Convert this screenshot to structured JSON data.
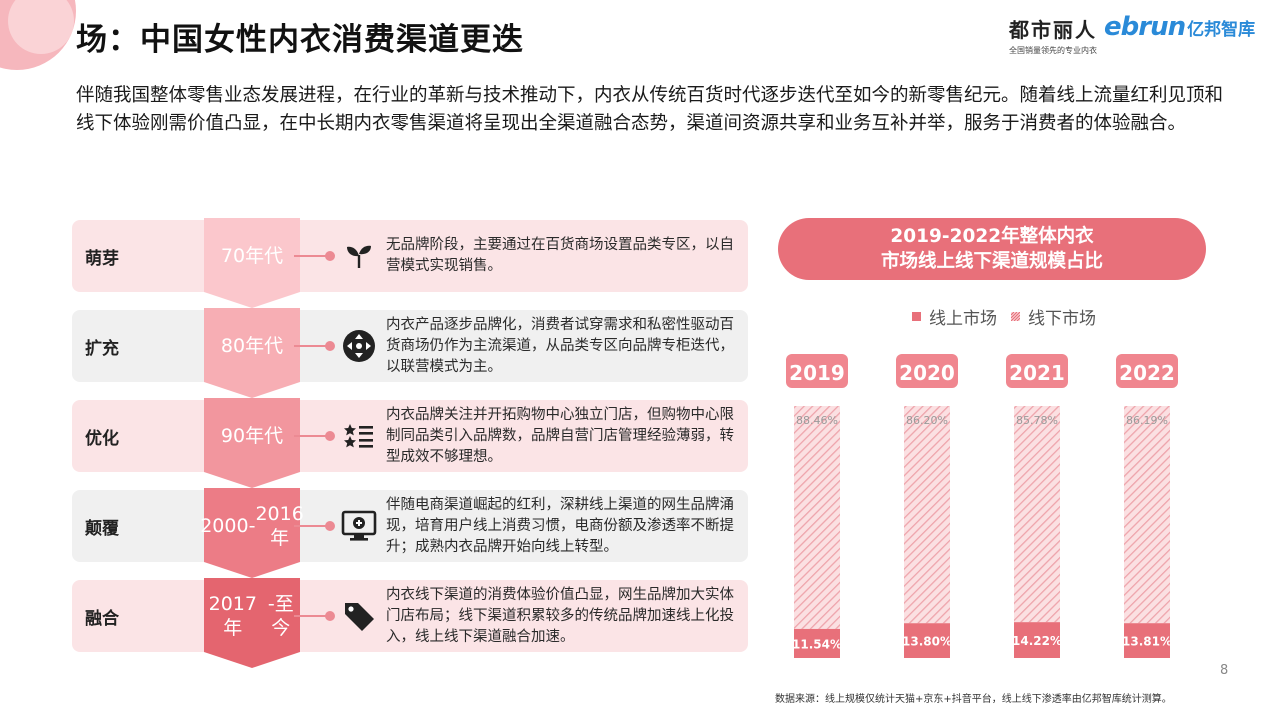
{
  "header": {
    "title": "场：中国女性内衣消费渠道更迭",
    "brand_a_name": "都市丽人",
    "brand_a_slogan": "全国销量领先的专业内衣",
    "brand_b_logo": "ebrun",
    "brand_b_name": "亿邦智库"
  },
  "intro": "伴随我国整体零售业态发展进程，在行业的革新与技术推动下，内衣从传统百货时代逐步迭代至如今的新零售纪元。随着线上流量红利见顶和线下体验刚需价值凸显，在中长期内衣零售渠道将呈现出全渠道融合态势，渠道间资源共享和业务互补并举，服务于消费者的体验融合。",
  "timeline": [
    {
      "stage": "萌芽",
      "era": "70年代",
      "icon": "sprout-icon",
      "desc": "无品牌阶段，主要通过在百货商场设置品类专区，以自营模式实现销售。"
    },
    {
      "stage": "扩充",
      "era": "80年代",
      "icon": "expand-icon",
      "desc": "内衣产品逐步品牌化，消费者试穿需求和私密性驱动百货商场仍作为主流渠道，从品类专区向品牌专柜迭代，以联营模式为主。"
    },
    {
      "stage": "优化",
      "era": "90年代",
      "icon": "star-list-icon",
      "desc": "内衣品牌关注并开拓购物中心独立门店，但购物中心限制同品类引入品牌数，品牌自营门店管理经验薄弱，转型成效不够理想。"
    },
    {
      "stage": "颠覆",
      "era": "2000-\n2016年",
      "icon": "monitor-icon",
      "desc": "伴随电商渠道崛起的红利，深耕线上渠道的网生品牌涌现，培育用户线上消费习惯，电商份额及渗透率不断提升；成熟内衣品牌开始向线上转型。"
    },
    {
      "stage": "融合",
      "era": "2017年\n-至今",
      "icon": "price-tag-icon",
      "desc": "内衣线下渠道的消费体验价值凸显，网生品牌加大实体门店布局；线下渠道积累较多的传统品牌加速线上化投入，线上线下渠道融合加速。"
    }
  ],
  "chart_title_line1": "2019-2022年整体内衣",
  "chart_title_line2": "市场线上线下渠道规模占比",
  "chart_data": {
    "type": "bar",
    "stacked": true,
    "categories": [
      "2019",
      "2020",
      "2021",
      "2022"
    ],
    "series": [
      {
        "name": "线上市场",
        "values": [
          11.54,
          13.8,
          14.22,
          13.81
        ],
        "labels": [
          "11.54%",
          "13.80%",
          "14.22%",
          "13.81%"
        ],
        "color": "#e8707a"
      },
      {
        "name": "线下市场",
        "values": [
          88.46,
          86.2,
          85.78,
          86.19
        ],
        "labels": [
          "88.46%",
          "86.20%",
          "85.78%",
          "86.19%"
        ],
        "color": "#f3b6bc"
      }
    ],
    "ylim": [
      0,
      100
    ],
    "legend": "top"
  },
  "page_number": "8",
  "footnote": "数据来源：线上规模仅统计天猫+京东+抖音平台，线上线下渗透率由亿邦智库统计测算。"
}
